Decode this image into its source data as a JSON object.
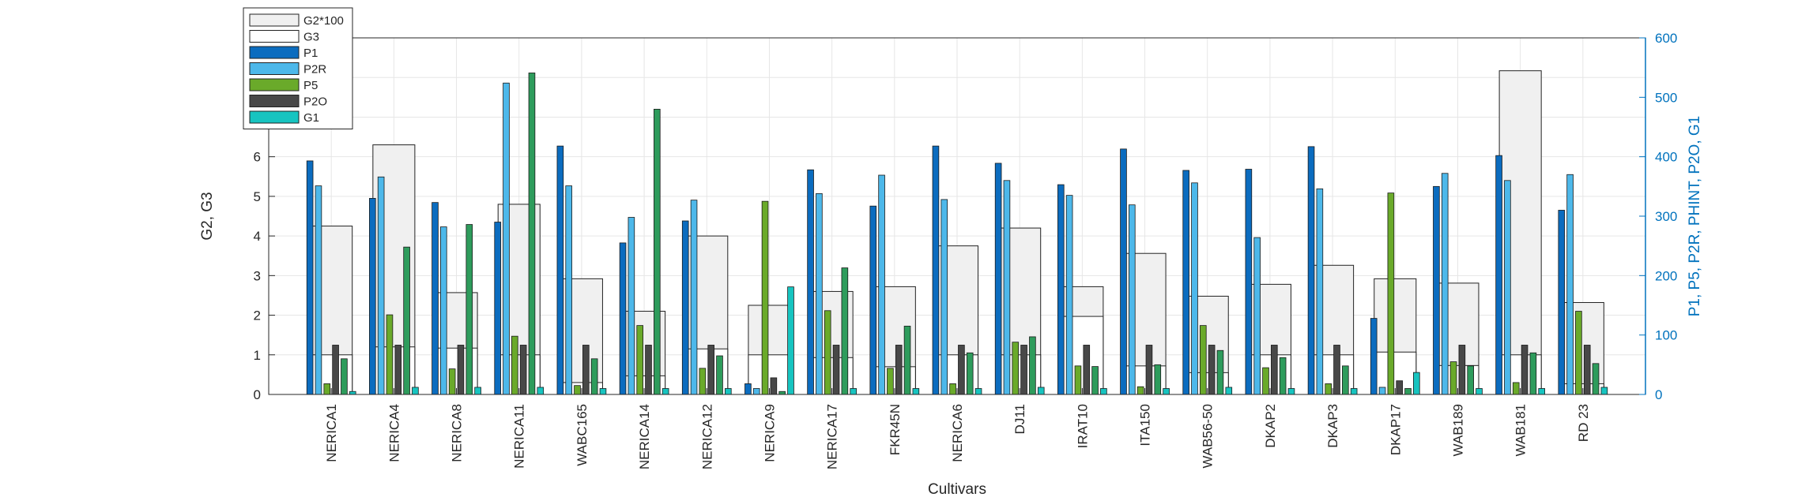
{
  "chart_data": {
    "type": "bar",
    "xlabel": "Cultivars",
    "ylabel_left": "G2, G3",
    "ylabel_right": "P1, P5, P2R, PHINT, P2O, G1",
    "ylim_left": [
      0,
      9
    ],
    "ylim_right": [
      0,
      600
    ],
    "yticks_left": [
      "0",
      "1",
      "2",
      "3",
      "4",
      "5",
      "6",
      "7",
      "8",
      "9"
    ],
    "yticks_right": [
      "0",
      "100",
      "200",
      "300",
      "400",
      "500",
      "600"
    ],
    "grid": true,
    "legend_position": "top-left",
    "categories": [
      "NERICA1",
      "NERICA4",
      "NERICA8",
      "NERICA11",
      "WABC165",
      "NERICA14",
      "NERICA12",
      "NERICA9",
      "NERICA17",
      "FKR45N",
      "NERICA6",
      "DJ11",
      "IRAT10",
      "ITA150",
      "WAB56-50",
      "DKAP2",
      "DKAP3",
      "DKAP17",
      "WAB189",
      "WAB181",
      "RD 23"
    ],
    "colors": {
      "G2*100": "#f0f0f0",
      "G3": "#ffffff",
      "P1": "#0b6cbf",
      "P2R": "#4db8ea",
      "P5": "#6aaa2a",
      "P2O": "#484848",
      "G1": "#17c4c0",
      "PHINT": "#2e9c5c",
      "edge": "#222222"
    },
    "left_axis_series": [
      {
        "name": "G2*100",
        "values": [
          4.25,
          6.3,
          2.57,
          4.8,
          2.92,
          2.1,
          4.0,
          2.25,
          2.6,
          2.72,
          3.75,
          4.2,
          2.72,
          3.56,
          2.48,
          2.78,
          3.26,
          2.92,
          2.81,
          8.17,
          2.32
        ]
      },
      {
        "name": "G3",
        "values": [
          1.0,
          1.2,
          1.17,
          1.0,
          0.3,
          0.47,
          1.15,
          1.0,
          0.93,
          0.7,
          1.0,
          1.0,
          1.97,
          0.72,
          0.55,
          1.0,
          1.0,
          1.07,
          0.73,
          1.0,
          0.27
        ]
      }
    ],
    "right_axis_series": [
      {
        "name": "P1",
        "values": [
          393,
          330,
          323,
          290,
          418,
          255,
          292,
          18,
          378,
          317,
          418,
          389,
          353,
          413,
          377,
          379,
          417,
          128,
          350,
          402,
          310
        ]
      },
      {
        "name": "P2R",
        "values": [
          351,
          366,
          282,
          524,
          351,
          298,
          327,
          10,
          338,
          369,
          328,
          360,
          335,
          319,
          356,
          264,
          346,
          12,
          372,
          360,
          370
        ]
      },
      {
        "name": "P5",
        "values": [
          18,
          134,
          43,
          98,
          15,
          116,
          44,
          325,
          141,
          44,
          18,
          88,
          48,
          13,
          116,
          45,
          18,
          339,
          55,
          20,
          140
        ]
      },
      {
        "name": "P2O",
        "values": [
          83,
          83,
          83,
          83,
          83,
          83,
          83,
          28,
          83,
          83,
          83,
          83,
          83,
          83,
          83,
          83,
          83,
          23,
          83,
          83,
          83
        ]
      },
      {
        "name": "PHINT",
        "values": [
          60,
          248,
          286,
          541,
          60,
          480,
          65,
          5,
          213,
          115,
          70,
          97,
          47,
          50,
          74,
          62,
          48,
          10,
          48,
          70,
          52
        ]
      },
      {
        "name": "G1",
        "values": [
          5,
          12,
          12,
          12,
          10,
          10,
          10,
          181,
          10,
          10,
          10,
          12,
          10,
          10,
          12,
          10,
          10,
          37,
          10,
          10,
          12
        ]
      }
    ],
    "legend": [
      "G2*100",
      "G3",
      "P1",
      "P2R",
      "P5",
      "P2O",
      "G1"
    ]
  }
}
